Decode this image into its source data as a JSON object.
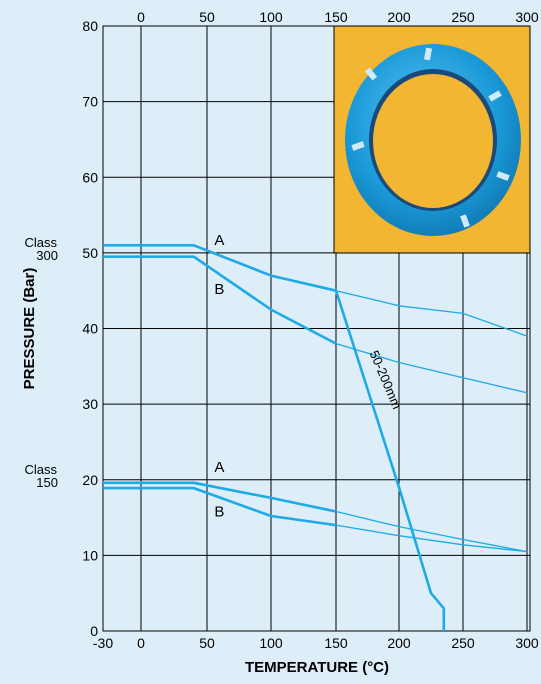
{
  "chart_data": {
    "type": "line",
    "title": "",
    "xlabel": "TEMPERATURE (°C)",
    "ylabel": "PRESSURE (Bar)",
    "xlim": [
      -30,
      300
    ],
    "ylim": [
      0,
      80
    ],
    "x_ticks_bottom": [
      "-30",
      "0",
      "50",
      "100",
      "150",
      "200",
      "250",
      "300"
    ],
    "x_ticks_top": [
      "0",
      "50",
      "100",
      "150",
      "200",
      "250",
      "300"
    ],
    "y_ticks": [
      "0",
      "10",
      "20",
      "30",
      "40",
      "50",
      "60",
      "70",
      "80"
    ],
    "grid": true,
    "class_labels": [
      {
        "line1": "Class",
        "line2": "300",
        "y": 50
      },
      {
        "line1": "Class",
        "line2": "150",
        "y": 20
      }
    ],
    "series_labels": [
      {
        "text": "A",
        "x": 55,
        "y": 51.3
      },
      {
        "text": "B",
        "x": 55,
        "y": 44.8
      },
      {
        "text": "A",
        "x": 55,
        "y": 21.3
      },
      {
        "text": "B",
        "x": 55,
        "y": 15.4
      }
    ],
    "annotation": {
      "text": "50-200mm"
    },
    "colors": {
      "line": "#1eaae6",
      "grid": "#000000",
      "background": "#ddeef8",
      "photo_bg": "#f2b632",
      "ring": "#1a9ad8"
    },
    "series": [
      {
        "values": [
          [
            -30,
            51
          ],
          [
            40,
            51
          ],
          [
            100,
            47
          ],
          [
            150,
            45
          ],
          [
            200,
            43
          ],
          [
            250,
            42
          ],
          [
            300,
            39
          ]
        ]
      },
      {
        "values": [
          [
            -30,
            49.5
          ],
          [
            40,
            49.5
          ],
          [
            100,
            42.5
          ],
          [
            150,
            38
          ],
          [
            200,
            35.5
          ],
          [
            250,
            33.5
          ],
          [
            300,
            31.5
          ]
        ]
      },
      {
        "values": [
          [
            -30,
            19.6
          ],
          [
            40,
            19.6
          ],
          [
            100,
            17.6
          ],
          [
            150,
            15.8
          ],
          [
            200,
            13.8
          ],
          [
            250,
            12.1
          ],
          [
            300,
            10.5
          ]
        ]
      },
      {
        "values": [
          [
            -30,
            18.9
          ],
          [
            40,
            18.9
          ],
          [
            100,
            15.2
          ],
          [
            150,
            14
          ],
          [
            200,
            12.6
          ],
          [
            250,
            11.4
          ],
          [
            300,
            10.5
          ]
        ]
      },
      {
        "values": [
          [
            150,
            45
          ],
          [
            200,
            19
          ],
          [
            225,
            5
          ],
          [
            235,
            3
          ],
          [
            235,
            0
          ]
        ]
      }
    ]
  }
}
